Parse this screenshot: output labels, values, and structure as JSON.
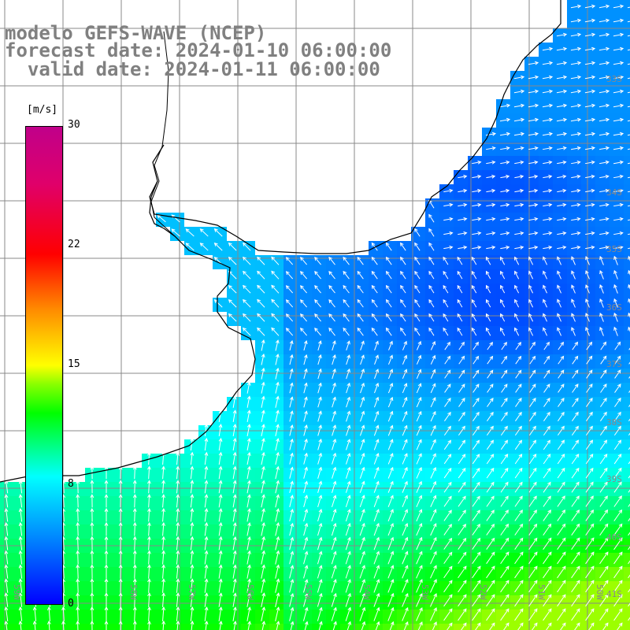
{
  "title": {
    "model": "modelo GEFS-WAVE (NCEP)",
    "forecast": "forecast date: 2024-01-10 06:00:00",
    "valid": "  valid date: 2024-01-11 06:00:00"
  },
  "colorbar": {
    "unit": "[m/s]",
    "ticks": [
      "30",
      "22",
      "15",
      "8",
      "0"
    ],
    "tick_values": [
      30,
      22,
      15,
      8,
      0
    ],
    "min": 0,
    "max": 30
  },
  "lat_labels": [
    "33S",
    "34S",
    "35S",
    "36S",
    "37S",
    "38S",
    "39S",
    "40S",
    "41S"
  ],
  "lon_labels": [
    "59W",
    "58W",
    "57W",
    "56W",
    "55W",
    "54W",
    "53W",
    "52W",
    "51W",
    "50W"
  ],
  "colors": {
    "land": "#ffffff",
    "coast": "#000000",
    "grid": "#888888",
    "arrow": "#ffffff"
  }
}
